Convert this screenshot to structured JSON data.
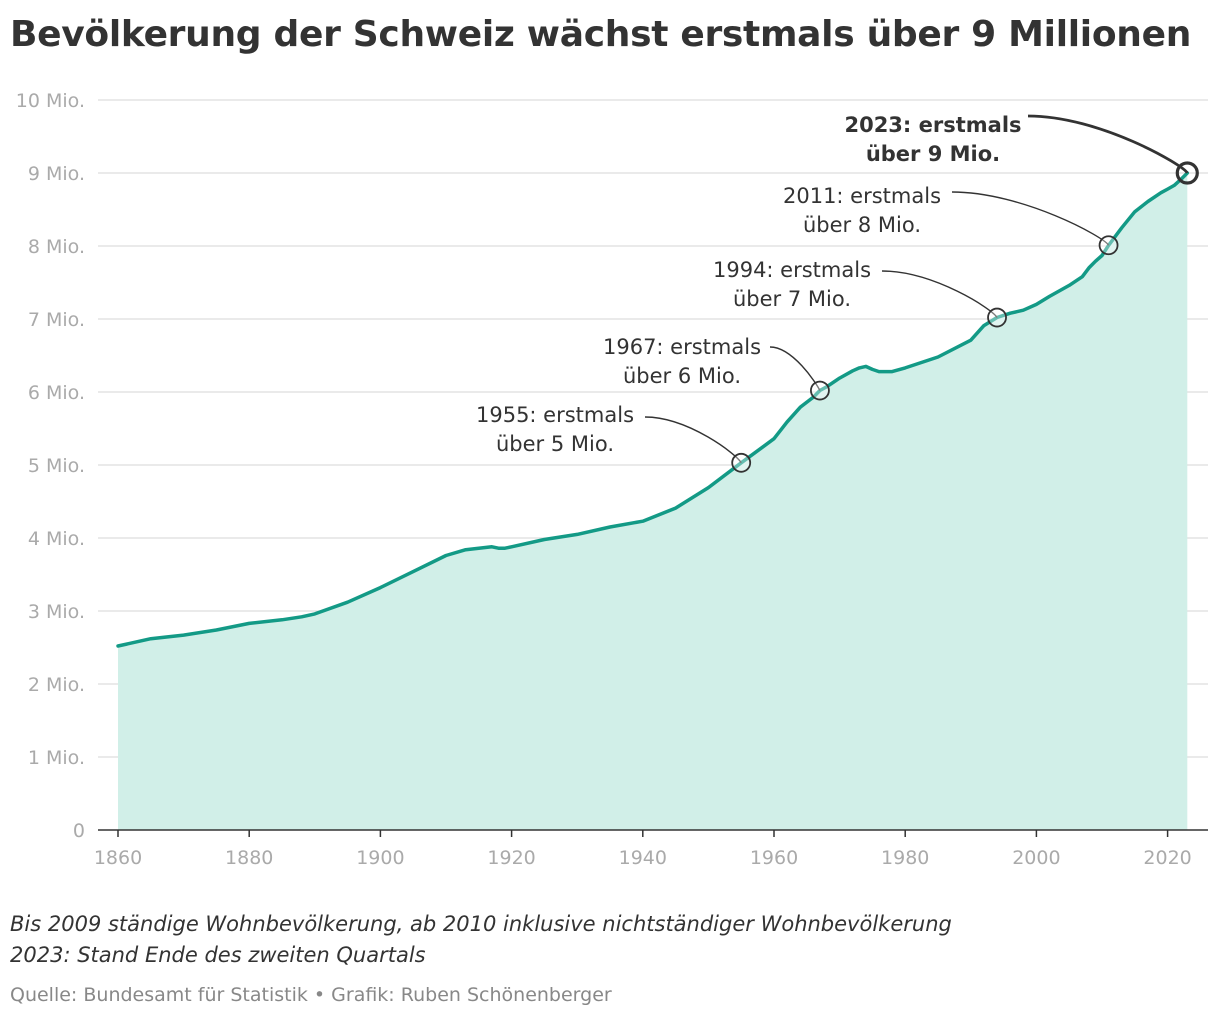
{
  "title": "Bevölkerung der Schweiz wächst erstmals über 9 Millionen",
  "notes": [
    "Bis 2009 ständige Wohnbevölkerung, ab 2010 inklusive nichtständiger Wohnbevölkerung",
    "2023: Stand Ende des zweiten Quartals"
  ],
  "source": "Quelle: Bundesamt für Statistik • Grafik: Ruben Schönenberger",
  "colors": {
    "line": "#139a86",
    "area": "#d1efe8",
    "grid": "#dddddd",
    "axis": "#333333",
    "tick_text": "#aaaaaa",
    "annotation": "#333333"
  },
  "chart_data": {
    "type": "area",
    "xlim": [
      1860,
      2023
    ],
    "ylim": [
      0,
      10
    ],
    "unit": "Mio.",
    "grid": true,
    "x_ticks": [
      {
        "value": 1860,
        "label": "1860"
      },
      {
        "value": 1880,
        "label": "1880"
      },
      {
        "value": 1900,
        "label": "1900"
      },
      {
        "value": 1920,
        "label": "1920"
      },
      {
        "value": 1940,
        "label": "1940"
      },
      {
        "value": 1960,
        "label": "1960"
      },
      {
        "value": 1980,
        "label": "1980"
      },
      {
        "value": 2000,
        "label": "2000"
      },
      {
        "value": 2020,
        "label": "2020"
      }
    ],
    "y_ticks": [
      {
        "value": 0,
        "label": "0"
      },
      {
        "value": 1,
        "label": "1 Mio."
      },
      {
        "value": 2,
        "label": "2 Mio."
      },
      {
        "value": 3,
        "label": "3 Mio."
      },
      {
        "value": 4,
        "label": "4 Mio."
      },
      {
        "value": 5,
        "label": "5 Mio."
      },
      {
        "value": 6,
        "label": "6 Mio."
      },
      {
        "value": 7,
        "label": "7 Mio."
      },
      {
        "value": 8,
        "label": "8 Mio."
      },
      {
        "value": 9,
        "label": "9 Mio."
      },
      {
        "value": 10,
        "label": "10 Mio."
      }
    ],
    "x": [
      1860,
      1865,
      1870,
      1875,
      1880,
      1885,
      1888,
      1890,
      1895,
      1900,
      1905,
      1910,
      1913,
      1915,
      1917,
      1918,
      1919,
      1920,
      1925,
      1930,
      1935,
      1940,
      1945,
      1950,
      1955,
      1960,
      1962,
      1964,
      1966,
      1967,
      1968,
      1970,
      1972,
      1973,
      1974,
      1975,
      1976,
      1978,
      1980,
      1985,
      1990,
      1992,
      1994,
      1996,
      1998,
      2000,
      2002,
      2005,
      2007,
      2008,
      2009,
      2010,
      2011,
      2013,
      2015,
      2017,
      2019,
      2020,
      2021,
      2022,
      2023
    ],
    "y": [
      2.52,
      2.62,
      2.67,
      2.74,
      2.83,
      2.88,
      2.92,
      2.96,
      3.12,
      3.32,
      3.54,
      3.76,
      3.84,
      3.86,
      3.88,
      3.86,
      3.86,
      3.88,
      3.98,
      4.05,
      4.15,
      4.23,
      4.41,
      4.69,
      5.03,
      5.36,
      5.59,
      5.79,
      5.93,
      6.02,
      6.07,
      6.19,
      6.29,
      6.33,
      6.35,
      6.31,
      6.28,
      6.28,
      6.33,
      6.48,
      6.71,
      6.91,
      7.02,
      7.08,
      7.12,
      7.2,
      7.31,
      7.46,
      7.58,
      7.7,
      7.79,
      7.87,
      8.01,
      8.25,
      8.47,
      8.61,
      8.73,
      8.78,
      8.83,
      8.91,
      9.0
    ],
    "annotations": [
      {
        "year": 1955,
        "value": 5.03,
        "line1": "1955: erstmals",
        "line2": "über 5 Mio.",
        "highlight": false
      },
      {
        "year": 1967,
        "value": 6.02,
        "line1": "1967: erstmals",
        "line2": "über 6 Mio.",
        "highlight": false
      },
      {
        "year": 1994,
        "value": 7.02,
        "line1": "1994: erstmals",
        "line2": "über 7 Mio.",
        "highlight": false
      },
      {
        "year": 2011,
        "value": 8.01,
        "line1": "2011: erstmals",
        "line2": "über 8 Mio.",
        "highlight": false
      },
      {
        "year": 2023,
        "value": 9.0,
        "line1": "2023: erstmals",
        "line2": "über 9 Mio.",
        "highlight": true
      }
    ]
  }
}
